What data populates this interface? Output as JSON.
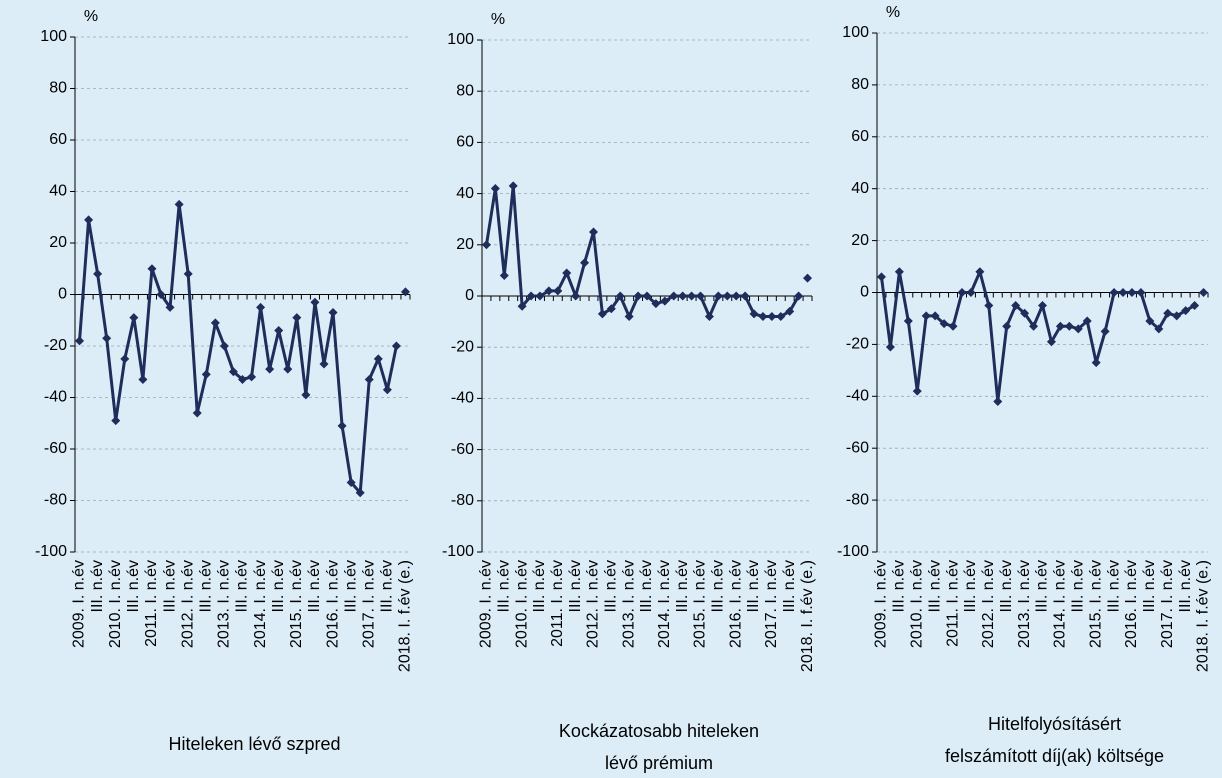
{
  "chart_data": [
    {
      "type": "line",
      "ylabel": "%",
      "title": [
        "Hiteleken lévő szpred"
      ],
      "categories": [
        "2009. I. n.év",
        null,
        "III. n.év",
        null,
        "2010. I. n.év",
        null,
        "III. n.év",
        null,
        "2011. I. n.év",
        null,
        "III. n.év",
        null,
        "2012. I. n.év",
        null,
        "III. n.év",
        null,
        "2013. I. n.év",
        null,
        "III. n.év",
        null,
        "2014. I. n.év",
        null,
        "III. n.év",
        null,
        "2015. I. n.év",
        null,
        "III. n.év",
        null,
        "2016. I. n.év",
        null,
        "III. n.év",
        null,
        "2017. I. n.év",
        null,
        "III. n.év",
        null,
        "2018. I. f.év (e.)"
      ],
      "series": [
        {
          "color": "#1f2d5a",
          "values": [
            -18,
            29,
            8,
            -17,
            -49,
            -25,
            -9,
            -33,
            10,
            0,
            -5,
            35,
            8,
            -46,
            -31,
            -11,
            -20,
            -30,
            -33,
            -32,
            -5,
            -29,
            -14,
            -29,
            -9,
            -39,
            -3,
            -27,
            -7,
            -51,
            -73,
            -77,
            -33,
            -25,
            -37,
            -20,
            null
          ]
        },
        {
          "color": "#1f2d5a",
          "values": [
            null,
            null,
            null,
            null,
            null,
            null,
            null,
            null,
            null,
            null,
            null,
            null,
            null,
            null,
            null,
            null,
            null,
            null,
            null,
            null,
            null,
            null,
            null,
            null,
            null,
            null,
            null,
            null,
            null,
            null,
            null,
            null,
            null,
            null,
            null,
            null,
            1
          ]
        }
      ],
      "ylim": [
        -100,
        100
      ],
      "yticks": [
        -100,
        -80,
        -60,
        -40,
        -20,
        0,
        20,
        40,
        60,
        80,
        100
      ],
      "grid": true
    },
    {
      "type": "line",
      "ylabel": "%",
      "title": [
        "Kockázatosabb hiteleken",
        "lévő prémium"
      ],
      "categories": [
        "2009. I. n.év",
        null,
        "III. n.év",
        null,
        "2010. I. n.év",
        null,
        "III. n.év",
        null,
        "2011. I. n.év",
        null,
        "III. n.év",
        null,
        "2012. I. n.év",
        null,
        "III. n.év",
        null,
        "2013. I. n.év",
        null,
        "III. n.év",
        null,
        "2014. I. n.év",
        null,
        "III. n.év",
        null,
        "2015. I. n.év",
        null,
        "III. n.év",
        null,
        "2016. I. n.év",
        null,
        "III. n.év",
        null,
        "2017. I. n.év",
        null,
        "III. n.év",
        null,
        "2018. I. f.év (e.)"
      ],
      "series": [
        {
          "color": "#1f2d5a",
          "values": [
            20,
            42,
            8,
            43,
            -4,
            0,
            0,
            2,
            2,
            9,
            0,
            13,
            25,
            -7,
            -5,
            0,
            -8,
            0,
            0,
            -3,
            -2,
            0,
            0,
            0,
            0,
            -8,
            0,
            0,
            0,
            0,
            -7,
            -8,
            -8,
            -8,
            -6,
            0,
            null
          ]
        },
        {
          "color": "#1f2d5a",
          "values": [
            null,
            null,
            null,
            null,
            null,
            null,
            null,
            null,
            null,
            null,
            null,
            null,
            null,
            null,
            null,
            null,
            null,
            null,
            null,
            null,
            null,
            null,
            null,
            null,
            null,
            null,
            null,
            null,
            null,
            null,
            null,
            null,
            null,
            null,
            null,
            null,
            7
          ]
        }
      ],
      "ylim": [
        -100,
        100
      ],
      "yticks": [
        -100,
        -80,
        -60,
        -40,
        -20,
        0,
        20,
        40,
        60,
        80,
        100
      ],
      "grid": true
    },
    {
      "type": "line",
      "ylabel": "%",
      "title": [
        "Hitelfolyósításért",
        "felszámított díj(ak) költsége"
      ],
      "categories": [
        "2009. I. n.év",
        null,
        "III. n.év",
        null,
        "2010. I. n.év",
        null,
        "III. n.év",
        null,
        "2011. I. n.év",
        null,
        "III. n.év",
        null,
        "2012. I. n.év",
        null,
        "III. n.év",
        null,
        "2013. I. n.év",
        null,
        "III. n.év",
        null,
        "2014. I. n.év",
        null,
        "III. n.év",
        null,
        "2015. I. n.év",
        null,
        "III. n.év",
        null,
        "2016. I. n.év",
        null,
        "III. n.év",
        null,
        "2017. I. n.év",
        null,
        "III. n.év",
        null,
        "2018. I. f.év (e.)"
      ],
      "series": [
        {
          "color": "#1f2d5a",
          "values": [
            6,
            -21,
            8,
            -11,
            -38,
            -9,
            -9,
            -12,
            -13,
            0,
            0,
            8,
            -5,
            -42,
            -13,
            -5,
            -8,
            -13,
            -5,
            -19,
            -13,
            -13,
            -14,
            -11,
            -27,
            -15,
            0,
            0,
            0,
            0,
            -11,
            -14,
            -8,
            -9,
            -7,
            -5,
            null
          ]
        },
        {
          "color": "#1f2d5a",
          "values": [
            null,
            null,
            null,
            null,
            null,
            null,
            null,
            null,
            null,
            null,
            null,
            null,
            null,
            null,
            null,
            null,
            null,
            null,
            null,
            null,
            null,
            null,
            null,
            null,
            null,
            null,
            null,
            null,
            null,
            null,
            null,
            null,
            null,
            null,
            null,
            null,
            0
          ]
        }
      ],
      "ylim": [
        -100,
        100
      ],
      "yticks": [
        -100,
        -80,
        -60,
        -40,
        -20,
        0,
        20,
        40,
        60,
        80,
        100
      ],
      "grid": true
    }
  ]
}
